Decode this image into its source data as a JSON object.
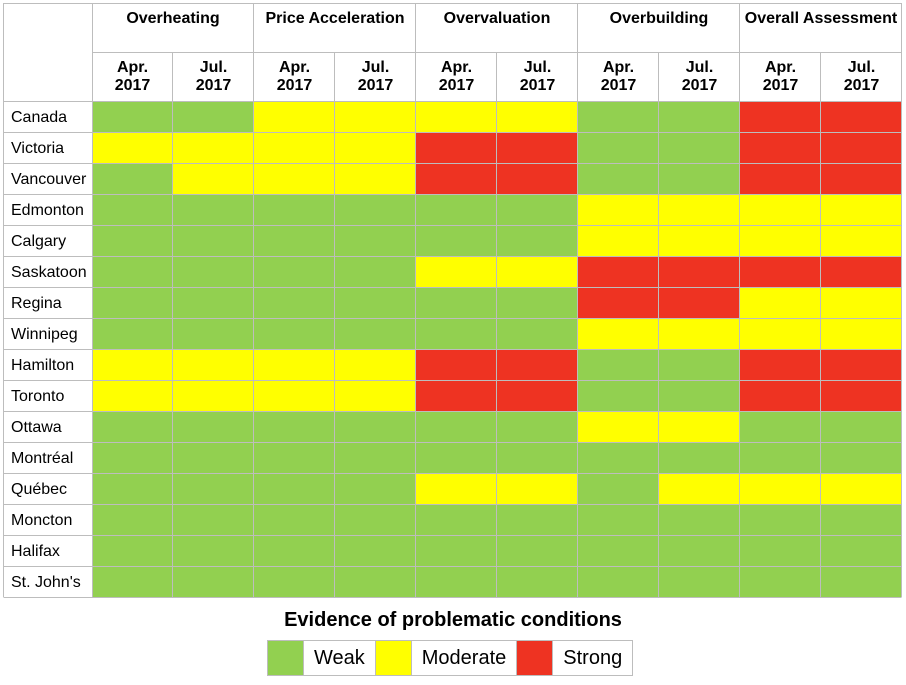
{
  "chart_data": {
    "type": "heatmap",
    "groups": [
      "Overheating",
      "Price Acceleration",
      "Overvaluation",
      "Overbuilding",
      "Overall Assessment"
    ],
    "periods": [
      "Apr. 2017",
      "Jul. 2017"
    ],
    "rows": [
      "Canada",
      "Victoria",
      "Vancouver",
      "Edmonton",
      "Calgary",
      "Saskatoon",
      "Regina",
      "Winnipeg",
      "Hamilton",
      "Toronto",
      "Ottawa",
      "Montréal",
      "Québec",
      "Moncton",
      "Halifax",
      "St. John's"
    ],
    "values": [
      [
        0,
        0,
        1,
        1,
        1,
        1,
        0,
        0,
        2,
        2
      ],
      [
        1,
        1,
        1,
        1,
        2,
        2,
        0,
        0,
        2,
        2
      ],
      [
        0,
        1,
        1,
        1,
        2,
        2,
        0,
        0,
        2,
        2
      ],
      [
        0,
        0,
        0,
        0,
        0,
        0,
        1,
        1,
        1,
        1
      ],
      [
        0,
        0,
        0,
        0,
        0,
        0,
        1,
        1,
        1,
        1
      ],
      [
        0,
        0,
        0,
        0,
        1,
        1,
        2,
        2,
        2,
        2
      ],
      [
        0,
        0,
        0,
        0,
        0,
        0,
        2,
        2,
        1,
        1
      ],
      [
        0,
        0,
        0,
        0,
        0,
        0,
        1,
        1,
        1,
        1
      ],
      [
        1,
        1,
        1,
        1,
        2,
        2,
        0,
        0,
        2,
        2
      ],
      [
        1,
        1,
        1,
        1,
        2,
        2,
        0,
        0,
        2,
        2
      ],
      [
        0,
        0,
        0,
        0,
        0,
        0,
        1,
        1,
        0,
        0
      ],
      [
        0,
        0,
        0,
        0,
        0,
        0,
        0,
        0,
        0,
        0
      ],
      [
        0,
        0,
        0,
        0,
        1,
        1,
        0,
        1,
        1,
        1
      ],
      [
        0,
        0,
        0,
        0,
        0,
        0,
        0,
        0,
        0,
        0
      ],
      [
        0,
        0,
        0,
        0,
        0,
        0,
        0,
        0,
        0,
        0
      ],
      [
        0,
        0,
        0,
        0,
        0,
        0,
        0,
        0,
        0,
        0
      ]
    ],
    "scale": [
      {
        "label": "Weak",
        "color": "#92d050"
      },
      {
        "label": "Moderate",
        "color": "#ffff00"
      },
      {
        "label": "Strong",
        "color": "#ee3322"
      }
    ],
    "legend": {
      "title": "Evidence of problematic conditions",
      "position": "bottom-center"
    },
    "grid_color": "#bdbdbd"
  }
}
